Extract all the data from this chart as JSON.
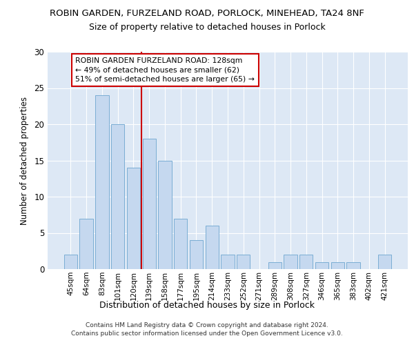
{
  "title1": "ROBIN GARDEN, FURZELAND ROAD, PORLOCK, MINEHEAD, TA24 8NF",
  "title2": "Size of property relative to detached houses in Porlock",
  "xlabel": "Distribution of detached houses by size in Porlock",
  "ylabel": "Number of detached properties",
  "categories": [
    "45sqm",
    "64sqm",
    "83sqm",
    "101sqm",
    "120sqm",
    "139sqm",
    "158sqm",
    "177sqm",
    "195sqm",
    "214sqm",
    "233sqm",
    "252sqm",
    "271sqm",
    "289sqm",
    "308sqm",
    "327sqm",
    "346sqm",
    "365sqm",
    "383sqm",
    "402sqm",
    "421sqm"
  ],
  "values": [
    2,
    7,
    24,
    20,
    14,
    18,
    15,
    7,
    4,
    6,
    2,
    2,
    0,
    1,
    2,
    2,
    1,
    1,
    1,
    0,
    2
  ],
  "bar_color": "#c5d8ef",
  "bar_edge_color": "#7aadd4",
  "vline_x_idx": 4,
  "vline_color": "#cc0000",
  "annotation_line1": "ROBIN GARDEN FURZELAND ROAD: 128sqm",
  "annotation_line2": "← 49% of detached houses are smaller (62)",
  "annotation_line3": "51% of semi-detached houses are larger (65) →",
  "annotation_box_color": "#ffffff",
  "annotation_box_edge": "#cc0000",
  "ylim": [
    0,
    30
  ],
  "yticks": [
    0,
    5,
    10,
    15,
    20,
    25,
    30
  ],
  "footer": "Contains HM Land Registry data © Crown copyright and database right 2024.\nContains public sector information licensed under the Open Government Licence v3.0.",
  "plot_background": "#dde8f5",
  "grid_color": "#ffffff"
}
